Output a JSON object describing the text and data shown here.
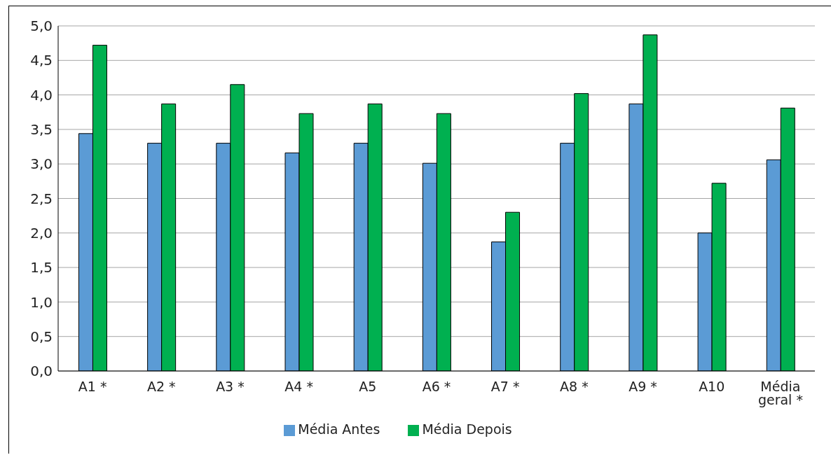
{
  "chart_data": {
    "type": "bar",
    "categories": [
      "A1 *",
      "A2 *",
      "A3 *",
      "A4 *",
      "A5",
      "A6 *",
      "A7 *",
      "A8 *",
      "A9 *",
      "A10",
      "Média geral *"
    ],
    "series": [
      {
        "name": "Média Antes",
        "color": "#5b9bd5",
        "values": [
          3.44,
          3.3,
          3.3,
          3.16,
          3.3,
          3.01,
          1.87,
          3.3,
          3.87,
          2.0,
          3.06
        ]
      },
      {
        "name": "Média Depois",
        "color": "#00b050",
        "values": [
          4.72,
          3.87,
          4.15,
          3.73,
          3.87,
          3.73,
          2.3,
          4.02,
          4.87,
          2.72,
          3.81
        ]
      }
    ],
    "ylim": [
      0,
      5
    ],
    "yticks": [
      {
        "value": 0,
        "label": "0,0"
      },
      {
        "value": 0.5,
        "label": "0,5"
      },
      {
        "value": 1,
        "label": "1,0"
      },
      {
        "value": 1.5,
        "label": "1,5"
      },
      {
        "value": 2,
        "label": "2,0"
      },
      {
        "value": 2.5,
        "label": "2,5"
      },
      {
        "value": 3,
        "label": "3,0"
      },
      {
        "value": 3.5,
        "label": "3,5"
      },
      {
        "value": 4,
        "label": "4,0"
      },
      {
        "value": 4.5,
        "label": "4,5"
      },
      {
        "value": 5,
        "label": "5,0"
      }
    ],
    "grid": "y",
    "legend": "bottom"
  }
}
